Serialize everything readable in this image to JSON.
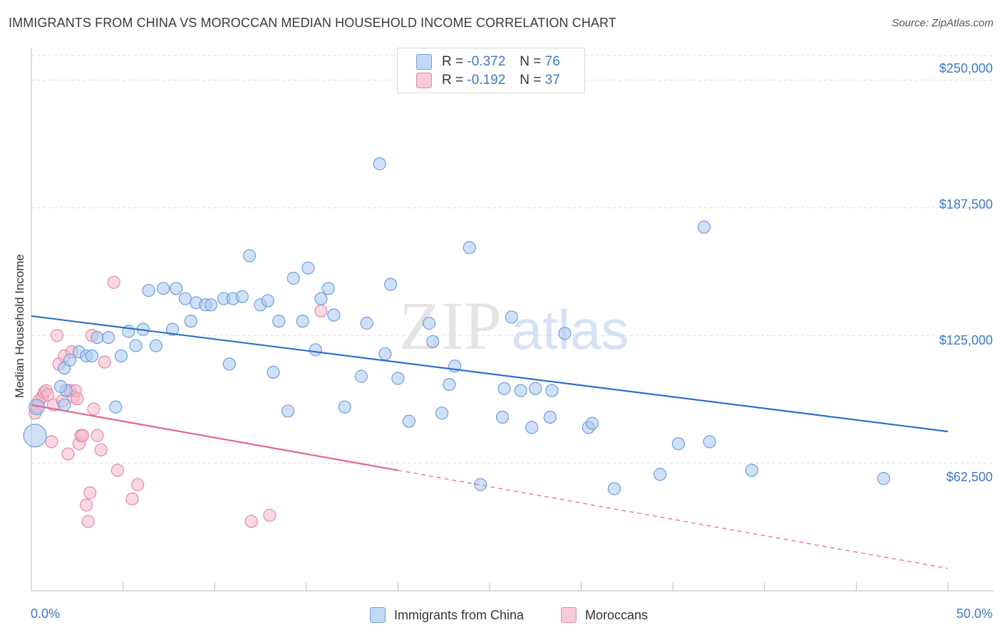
{
  "title": "IMMIGRANTS FROM CHINA VS MOROCCAN MEDIAN HOUSEHOLD INCOME CORRELATION CHART",
  "source": "Source: ZipAtlas.com",
  "watermark": {
    "zip": "ZIP",
    "atlas": "atlas"
  },
  "colors": {
    "blue_fill": "#a9c8f0",
    "blue_stroke": "#6e9fd9",
    "blue_line": "#2f6fcb",
    "pink_fill": "#f5b8cb",
    "pink_stroke": "#e28aa7",
    "pink_line": "#e06490",
    "tick_text": "#3b78c8",
    "grid": "#dddddd"
  },
  "legend": {
    "blue": {
      "r_label": "R =",
      "r_value": "-0.372",
      "n_label": "N =",
      "n_value": "76"
    },
    "pink": {
      "r_label": "R =",
      "r_value": "-0.192",
      "n_label": "N =",
      "n_value": "37"
    }
  },
  "chart_data": {
    "type": "scatter",
    "title": "IMMIGRANTS FROM CHINA VS MOROCCAN MEDIAN HOUSEHOLD INCOME CORRELATION CHART",
    "xlabel": "",
    "ylabel": "Median Household Income",
    "xlim": [
      0,
      50
    ],
    "ylim": [
      0,
      262000
    ],
    "x_tick_labels": [
      "0.0%",
      "50.0%"
    ],
    "y_ticks": [
      62500,
      125000,
      187500,
      250000
    ],
    "y_tick_labels": [
      "$62,500",
      "$125,000",
      "$187,500",
      "$250,000"
    ],
    "grid": true,
    "legend_position": "top-center",
    "series": [
      {
        "name": "Immigrants from China",
        "color": "#a9c8f0",
        "trend": {
          "x": [
            0,
            50
          ],
          "y": [
            134500,
            78000
          ],
          "style": "solid"
        },
        "points": [
          {
            "x": 0.2,
            "y": 76000,
            "s": 16
          },
          {
            "x": 0.3,
            "y": 90000,
            "s": 11
          },
          {
            "x": 1.8,
            "y": 91000
          },
          {
            "x": 1.9,
            "y": 98000
          },
          {
            "x": 1.6,
            "y": 100000
          },
          {
            "x": 1.8,
            "y": 109000
          },
          {
            "x": 2.1,
            "y": 113000
          },
          {
            "x": 2.6,
            "y": 117000
          },
          {
            "x": 3.0,
            "y": 115000
          },
          {
            "x": 3.3,
            "y": 115000
          },
          {
            "x": 3.6,
            "y": 124000
          },
          {
            "x": 4.2,
            "y": 124000
          },
          {
            "x": 4.6,
            "y": 90000
          },
          {
            "x": 4.9,
            "y": 115000
          },
          {
            "x": 5.3,
            "y": 127000
          },
          {
            "x": 5.7,
            "y": 120000
          },
          {
            "x": 6.1,
            "y": 128000
          },
          {
            "x": 6.4,
            "y": 147000
          },
          {
            "x": 6.8,
            "y": 120000
          },
          {
            "x": 7.2,
            "y": 148000
          },
          {
            "x": 7.7,
            "y": 128000
          },
          {
            "x": 7.9,
            "y": 148000
          },
          {
            "x": 8.4,
            "y": 143000
          },
          {
            "x": 8.7,
            "y": 132000
          },
          {
            "x": 9.0,
            "y": 141000
          },
          {
            "x": 9.5,
            "y": 140000
          },
          {
            "x": 9.8,
            "y": 140000
          },
          {
            "x": 10.5,
            "y": 143000
          },
          {
            "x": 10.8,
            "y": 111000
          },
          {
            "x": 11.0,
            "y": 143000
          },
          {
            "x": 11.5,
            "y": 144000
          },
          {
            "x": 11.9,
            "y": 164000
          },
          {
            "x": 12.5,
            "y": 140000
          },
          {
            "x": 12.9,
            "y": 142000
          },
          {
            "x": 13.2,
            "y": 107000
          },
          {
            "x": 13.5,
            "y": 132000
          },
          {
            "x": 14.0,
            "y": 88000
          },
          {
            "x": 14.3,
            "y": 153000
          },
          {
            "x": 14.8,
            "y": 132000
          },
          {
            "x": 15.1,
            "y": 158000
          },
          {
            "x": 15.5,
            "y": 118000
          },
          {
            "x": 15.8,
            "y": 143000
          },
          {
            "x": 16.2,
            "y": 148000
          },
          {
            "x": 16.5,
            "y": 135000
          },
          {
            "x": 17.1,
            "y": 90000
          },
          {
            "x": 18.0,
            "y": 105000
          },
          {
            "x": 18.3,
            "y": 131000
          },
          {
            "x": 19.0,
            "y": 209000
          },
          {
            "x": 19.3,
            "y": 116000
          },
          {
            "x": 19.6,
            "y": 150000
          },
          {
            "x": 20.0,
            "y": 104000
          },
          {
            "x": 20.6,
            "y": 83000
          },
          {
            "x": 21.7,
            "y": 131000
          },
          {
            "x": 21.9,
            "y": 122000
          },
          {
            "x": 22.4,
            "y": 87000
          },
          {
            "x": 22.8,
            "y": 101000
          },
          {
            "x": 23.1,
            "y": 110000
          },
          {
            "x": 23.9,
            "y": 168000
          },
          {
            "x": 24.5,
            "y": 52000
          },
          {
            "x": 25.7,
            "y": 85000
          },
          {
            "x": 25.8,
            "y": 99000
          },
          {
            "x": 26.2,
            "y": 134000
          },
          {
            "x": 26.7,
            "y": 98000
          },
          {
            "x": 27.3,
            "y": 80000
          },
          {
            "x": 27.5,
            "y": 99000
          },
          {
            "x": 28.3,
            "y": 85000
          },
          {
            "x": 28.4,
            "y": 98000
          },
          {
            "x": 29.1,
            "y": 126000
          },
          {
            "x": 30.4,
            "y": 80000
          },
          {
            "x": 30.6,
            "y": 82000
          },
          {
            "x": 31.8,
            "y": 50000
          },
          {
            "x": 34.3,
            "y": 57000
          },
          {
            "x": 35.3,
            "y": 72000
          },
          {
            "x": 36.7,
            "y": 178000
          },
          {
            "x": 37.0,
            "y": 73000
          },
          {
            "x": 39.3,
            "y": 59000
          },
          {
            "x": 46.5,
            "y": 55000
          }
        ]
      },
      {
        "name": "Moroccans",
        "color": "#f5b8cb",
        "trend": {
          "x": [
            0,
            20
          ],
          "y": [
            91000,
            59000
          ],
          "style": "solid",
          "extension": {
            "x": [
              20,
              50
            ],
            "y": [
              59000,
              11000
            ],
            "style": "dashed"
          }
        },
        "points": [
          {
            "x": 0.2,
            "y": 87000
          },
          {
            "x": 0.3,
            "y": 90000
          },
          {
            "x": 0.4,
            "y": 93000
          },
          {
            "x": 0.6,
            "y": 95000
          },
          {
            "x": 0.7,
            "y": 97000
          },
          {
            "x": 0.8,
            "y": 98000
          },
          {
            "x": 0.9,
            "y": 96000
          },
          {
            "x": 1.2,
            "y": 91000
          },
          {
            "x": 1.4,
            "y": 125000
          },
          {
            "x": 1.5,
            "y": 111000
          },
          {
            "x": 1.7,
            "y": 93000
          },
          {
            "x": 1.8,
            "y": 115000
          },
          {
            "x": 2.0,
            "y": 67000
          },
          {
            "x": 2.1,
            "y": 98000
          },
          {
            "x": 2.2,
            "y": 117000
          },
          {
            "x": 2.3,
            "y": 95000
          },
          {
            "x": 2.4,
            "y": 98000
          },
          {
            "x": 2.5,
            "y": 94000
          },
          {
            "x": 2.6,
            "y": 72000
          },
          {
            "x": 2.7,
            "y": 76000
          },
          {
            "x": 2.8,
            "y": 76000
          },
          {
            "x": 3.0,
            "y": 42000
          },
          {
            "x": 3.1,
            "y": 34000
          },
          {
            "x": 3.2,
            "y": 48000
          },
          {
            "x": 3.3,
            "y": 125000
          },
          {
            "x": 3.4,
            "y": 89000
          },
          {
            "x": 3.6,
            "y": 76000
          },
          {
            "x": 3.8,
            "y": 69000
          },
          {
            "x": 4.0,
            "y": 112000
          },
          {
            "x": 4.5,
            "y": 151000
          },
          {
            "x": 4.7,
            "y": 59000
          },
          {
            "x": 5.5,
            "y": 45000
          },
          {
            "x": 5.8,
            "y": 52000
          },
          {
            "x": 12.0,
            "y": 34000
          },
          {
            "x": 13.0,
            "y": 37000
          },
          {
            "x": 15.8,
            "y": 137000
          },
          {
            "x": 1.1,
            "y": 73000
          }
        ]
      }
    ]
  }
}
